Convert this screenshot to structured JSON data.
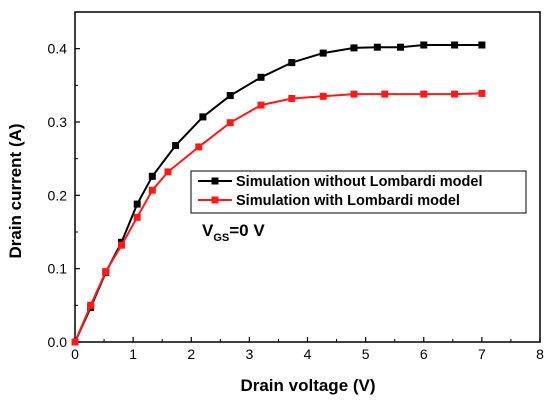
{
  "chart_data": {
    "type": "line",
    "title": "",
    "xlabel": "Drain voltage (V)",
    "ylabel": "Drain current (A)",
    "xlim": [
      0,
      8
    ],
    "ylim": [
      0,
      0.45
    ],
    "xticks": [
      0,
      1,
      2,
      3,
      4,
      5,
      6,
      7,
      8
    ],
    "xtick_labels": [
      "0",
      "1",
      "2",
      "3",
      "4",
      "5",
      "6",
      "7",
      "8"
    ],
    "yticks": [
      0.0,
      0.1,
      0.2,
      0.3,
      0.4
    ],
    "ytick_labels": [
      "0.0",
      "0.1",
      "0.2",
      "0.3",
      "0.4"
    ],
    "grid": false,
    "legend_position": "center-right",
    "annotation": {
      "main": "V",
      "sub": "GS",
      "rest": "=0 V"
    },
    "series": [
      {
        "name": "Simulation without Lombardi model",
        "color": "#000000",
        "marker": "square",
        "x": [
          0,
          0.27,
          0.53,
          0.8,
          1.07,
          1.33,
          1.73,
          2.2,
          2.67,
          3.2,
          3.73,
          4.27,
          4.8,
          5.2,
          5.6,
          6.0,
          6.53,
          7.0
        ],
        "y": [
          0.0,
          0.047,
          0.095,
          0.136,
          0.188,
          0.226,
          0.268,
          0.307,
          0.336,
          0.361,
          0.381,
          0.394,
          0.401,
          0.402,
          0.402,
          0.405,
          0.405,
          0.405
        ]
      },
      {
        "name": "Simulation with Lombardi model",
        "color": "#ff1a1a",
        "marker": "square",
        "x": [
          0,
          0.27,
          0.53,
          0.8,
          1.07,
          1.33,
          1.6,
          2.13,
          2.67,
          3.2,
          3.73,
          4.27,
          4.8,
          5.33,
          6.0,
          6.53,
          7.0
        ],
        "y": [
          0.0,
          0.05,
          0.096,
          0.132,
          0.17,
          0.207,
          0.232,
          0.266,
          0.299,
          0.323,
          0.332,
          0.335,
          0.338,
          0.338,
          0.338,
          0.338,
          0.339
        ]
      }
    ]
  }
}
